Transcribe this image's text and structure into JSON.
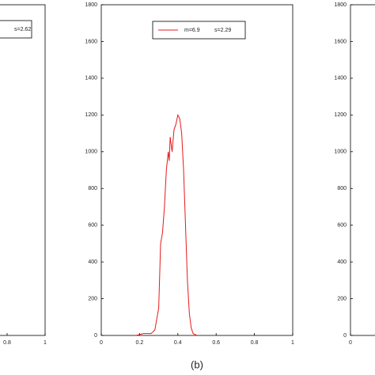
{
  "chart_data": [
    {
      "type": "line",
      "xlim": [
        0,
        1
      ],
      "xticks": [
        0.8,
        1
      ],
      "legend": [
        "s=2.62"
      ]
    },
    {
      "type": "line",
      "xlim": [
        0,
        1
      ],
      "ylim": [
        0,
        1800
      ],
      "xticks": [
        0,
        0.2,
        0.4,
        0.6,
        0.8,
        1
      ],
      "yticks": [
        0,
        200,
        400,
        600,
        800,
        1000,
        1200,
        1400,
        1600,
        1800
      ],
      "x": [
        0.18,
        0.2,
        0.22,
        0.26,
        0.28,
        0.3,
        0.31,
        0.32,
        0.33,
        0.34,
        0.35,
        0.355,
        0.36,
        0.37,
        0.38,
        0.39,
        0.4,
        0.41,
        0.42,
        0.43,
        0.44,
        0.45,
        0.46,
        0.47,
        0.48,
        0.5
      ],
      "series": [
        {
          "name": "m=6.9",
          "color": "#e41a1c",
          "values": [
            0,
            5,
            10,
            10,
            30,
            150,
            500,
            560,
            700,
            900,
            1000,
            950,
            1080,
            1000,
            1120,
            1150,
            1200,
            1180,
            1100,
            900,
            600,
            300,
            120,
            40,
            10,
            0
          ]
        }
      ],
      "legend": [
        "m=6.9",
        "s=2.29"
      ],
      "caption": "(b)"
    },
    {
      "type": "line",
      "xlim": [
        0,
        1
      ],
      "ylim": [
        0,
        1800
      ],
      "xticks": [
        0
      ],
      "yticks": [
        0,
        200,
        400,
        600,
        800,
        1000,
        1200,
        1400,
        1600,
        1800
      ]
    }
  ]
}
